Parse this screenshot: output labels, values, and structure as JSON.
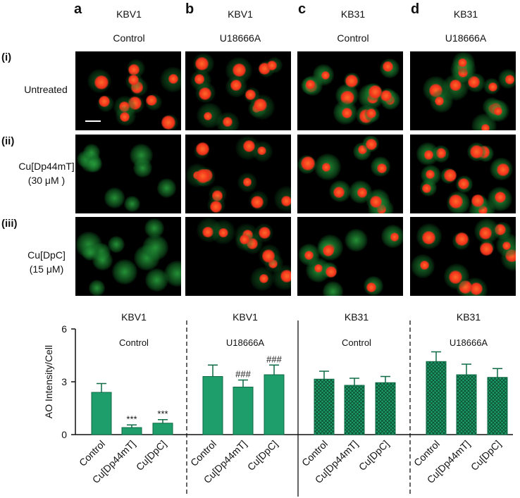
{
  "columns": [
    {
      "letter": "a",
      "line": "KBV1",
      "condition": "Control"
    },
    {
      "letter": "b",
      "line": "KBV1",
      "condition": "U18666A"
    },
    {
      "letter": "c",
      "line": "KB31",
      "condition": "Control"
    },
    {
      "letter": "d",
      "line": "KB31",
      "condition": "U18666A"
    }
  ],
  "rows": [
    {
      "num": "(i)",
      "label": "Untreated",
      "label2": ""
    },
    {
      "num": "(ii)",
      "label": "Cu[Dp44mT]",
      "label2": "(30 μM )"
    },
    {
      "num": "(iii)",
      "label": "Cu[DpC]",
      "label2": "(15 μM)"
    }
  ],
  "colors": {
    "bar_fill": "#1e9e6a",
    "bar_edge": "#0e6b45",
    "cell_red": "#ff3a1a",
    "cell_green": "#1f8a2e"
  },
  "chart_data": {
    "type": "bar",
    "ylabel": "AO Intensity/Cell",
    "ylim": [
      0,
      6
    ],
    "yticks": [
      "0",
      "3",
      "6"
    ],
    "groups": [
      {
        "line": "KBV1",
        "condition": "Control",
        "pattern": "solid",
        "categories": [
          "Control",
          "Cu[Dp44mT]",
          "Cu[DpC]"
        ],
        "values": [
          2.4,
          0.4,
          0.65
        ],
        "errors": [
          0.5,
          0.15,
          0.2
        ],
        "annotations": [
          "",
          "***",
          "***"
        ]
      },
      {
        "line": "KBV1",
        "condition": "U18666A",
        "pattern": "solid",
        "categories": [
          "Control",
          "Cu[Dp44mT]",
          "Cu[DpC]"
        ],
        "values": [
          3.3,
          2.7,
          3.4
        ],
        "errors": [
          0.65,
          0.4,
          0.55
        ],
        "annotations": [
          "",
          "###",
          "###"
        ]
      },
      {
        "line": "KB31",
        "condition": "Control",
        "pattern": "checked",
        "categories": [
          "Control",
          "Cu[Dp44mT]",
          "Cu[DpC]"
        ],
        "values": [
          3.15,
          2.8,
          2.95
        ],
        "errors": [
          0.45,
          0.4,
          0.35
        ],
        "annotations": [
          "",
          "",
          ""
        ]
      },
      {
        "line": "KB31",
        "condition": "U18666A",
        "pattern": "checked",
        "categories": [
          "Control",
          "Cu[Dp44mT]",
          "Cu[DpC]"
        ],
        "values": [
          4.15,
          3.4,
          3.25
        ],
        "errors": [
          0.55,
          0.6,
          0.5
        ],
        "annotations": [
          "",
          "",
          ""
        ]
      }
    ]
  }
}
